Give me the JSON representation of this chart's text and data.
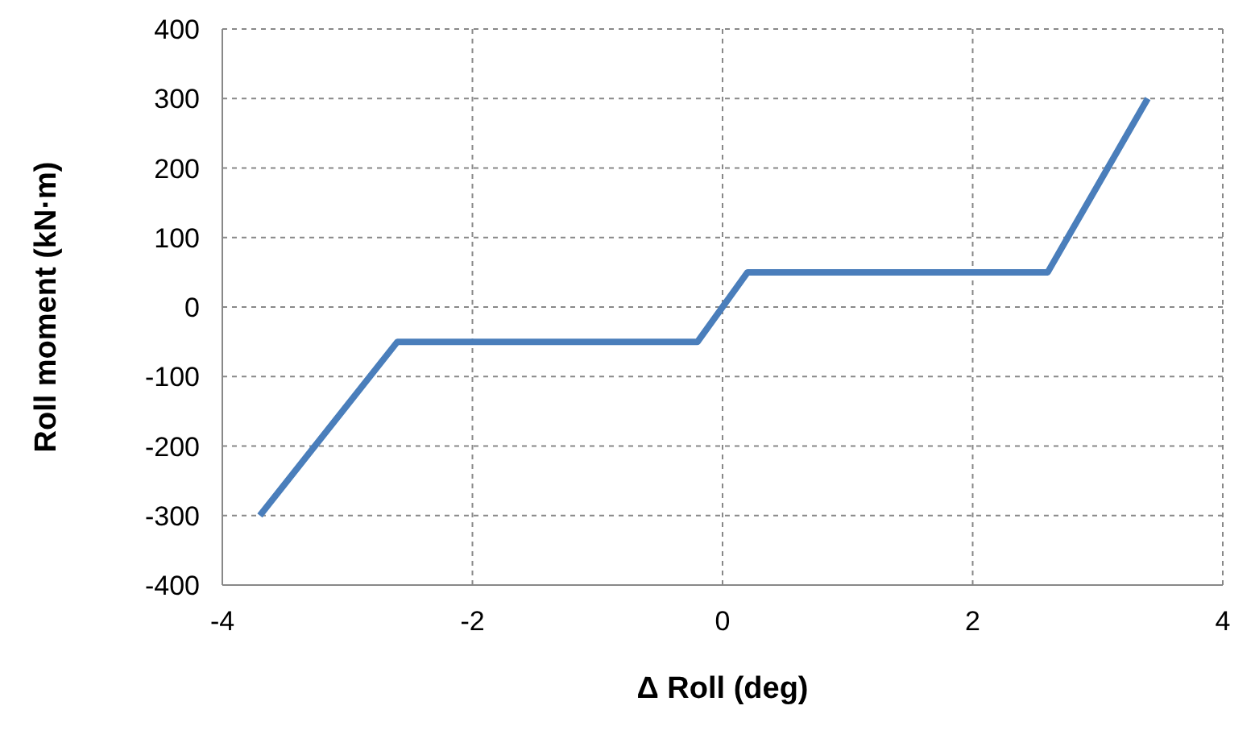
{
  "chart_data": {
    "type": "line",
    "xlabel": "Δ Roll (deg)",
    "ylabel": "Roll moment (kN·m)",
    "series": [
      {
        "color": "#4a7ebb",
        "x": [
          -3.7,
          -2.6,
          -0.2,
          0.2,
          2.6,
          3.4
        ],
        "values": [
          -300,
          -50,
          -50,
          50,
          50,
          300
        ]
      }
    ],
    "xlim": [
      -4,
      4
    ],
    "xticks": [
      -4,
      -2,
      0,
      2,
      4
    ],
    "ylim": [
      -400,
      400
    ],
    "yticks": [
      -400,
      -300,
      -200,
      -100,
      0,
      100,
      200,
      300,
      400
    ],
    "grid": true,
    "marker": "none",
    "line_style": "solid",
    "legend": false
  }
}
